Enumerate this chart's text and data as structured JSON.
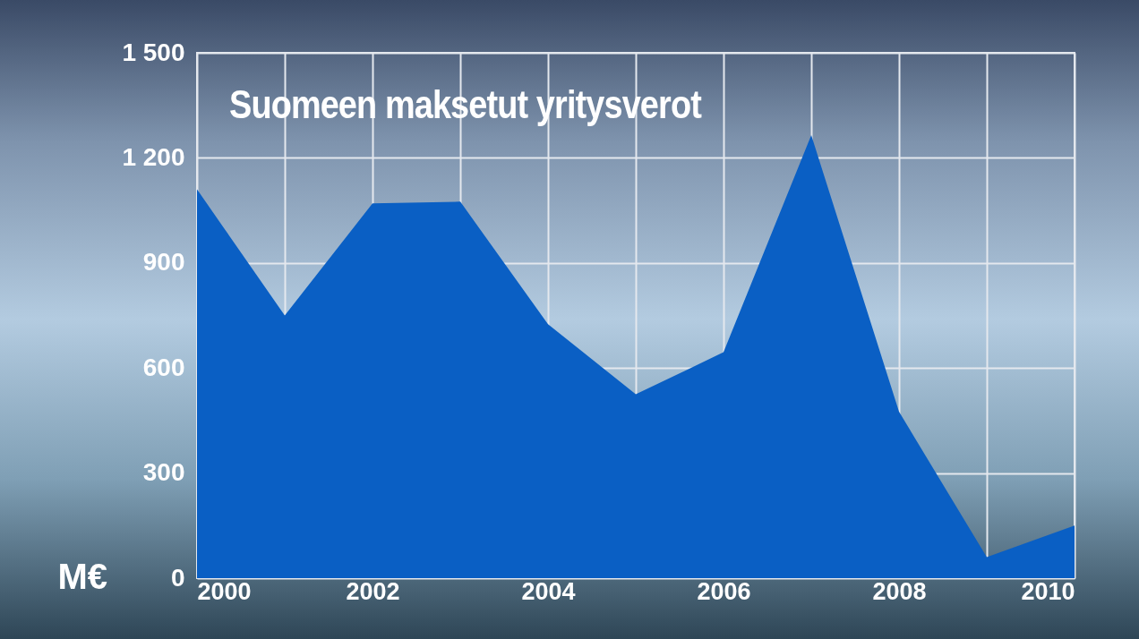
{
  "chart_data": {
    "type": "area",
    "title": "Suomeen maksetut yritysverot",
    "ylabel": "M€",
    "x": [
      2000,
      2001,
      2002,
      2003,
      2004,
      2005,
      2006,
      2007,
      2008,
      2009,
      2010
    ],
    "series": [
      {
        "color": "#0a5fc4",
        "values": [
          1110,
          750,
          1070,
          1075,
          725,
          525,
          645,
          1265,
          475,
          60,
          150
        ]
      }
    ],
    "xlim": [
      2000,
      2010
    ],
    "ylim": [
      0,
      1500
    ],
    "xticks": [
      2000,
      {
        "value": 2001,
        "label": null
      },
      2002,
      {
        "value": 2003,
        "label": null
      },
      2004,
      {
        "value": 2005,
        "label": null
      },
      2006,
      {
        "value": 2007,
        "label": null
      },
      2008,
      {
        "value": 2009,
        "label": null
      },
      2010
    ],
    "yticks": [
      0,
      300,
      600,
      900,
      {
        "value": 1200,
        "label": "1 200"
      },
      {
        "value": 1500,
        "label": "1 500"
      }
    ],
    "grid": true
  }
}
